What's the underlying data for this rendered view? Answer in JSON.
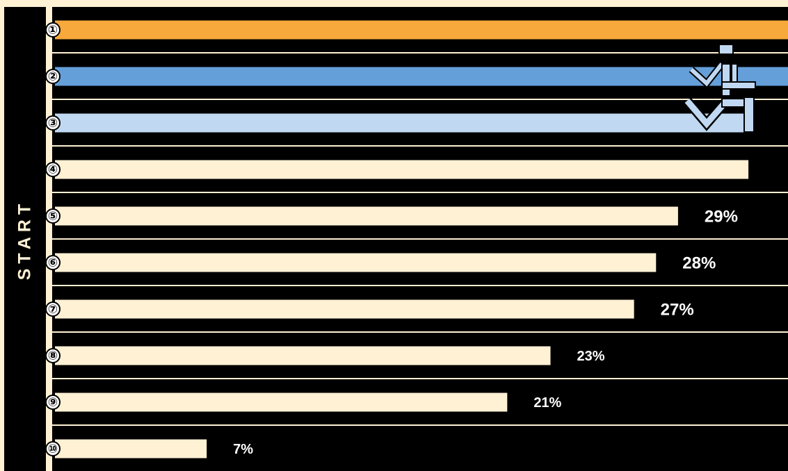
{
  "start_label": "START",
  "colors": {
    "track": "#000000",
    "lane_line": "#fff1d4",
    "background": "#fff1d4",
    "bar_default": "#fff1d4",
    "bar_rank1": "#f7a93b",
    "bar_rank2": "#649fda",
    "bar_rank3": "#c1d8f2",
    "label_text": "#ffffff"
  },
  "icons": [
    "seated-figure-icon"
  ],
  "chart_data": {
    "type": "bar",
    "orientation": "horizontal",
    "title": "",
    "xlabel": "",
    "ylabel": "",
    "categories": [
      "①",
      "②",
      "③",
      "④",
      "⑤",
      "⑥",
      "⑦",
      "⑧",
      "⑨",
      "⑩"
    ],
    "values": [
      null,
      null,
      null,
      null,
      29,
      28,
      27,
      23,
      21,
      7
    ],
    "value_labels": [
      "",
      "",
      "",
      "",
      "29%",
      "28%",
      "27%",
      "23%",
      "21%",
      "7%"
    ],
    "bar_extent": [
      1.0,
      1.0,
      0.94,
      0.946,
      0.85,
      0.82,
      0.79,
      0.676,
      0.617,
      0.207
    ],
    "highlight_colors": [
      "#f7a93b",
      "#649fda",
      "#c1d8f2",
      "#fff1d4",
      "#fff1d4",
      "#fff1d4",
      "#fff1d4",
      "#fff1d4",
      "#fff1d4",
      "#fff1d4"
    ],
    "grid": false,
    "legend": "none"
  }
}
